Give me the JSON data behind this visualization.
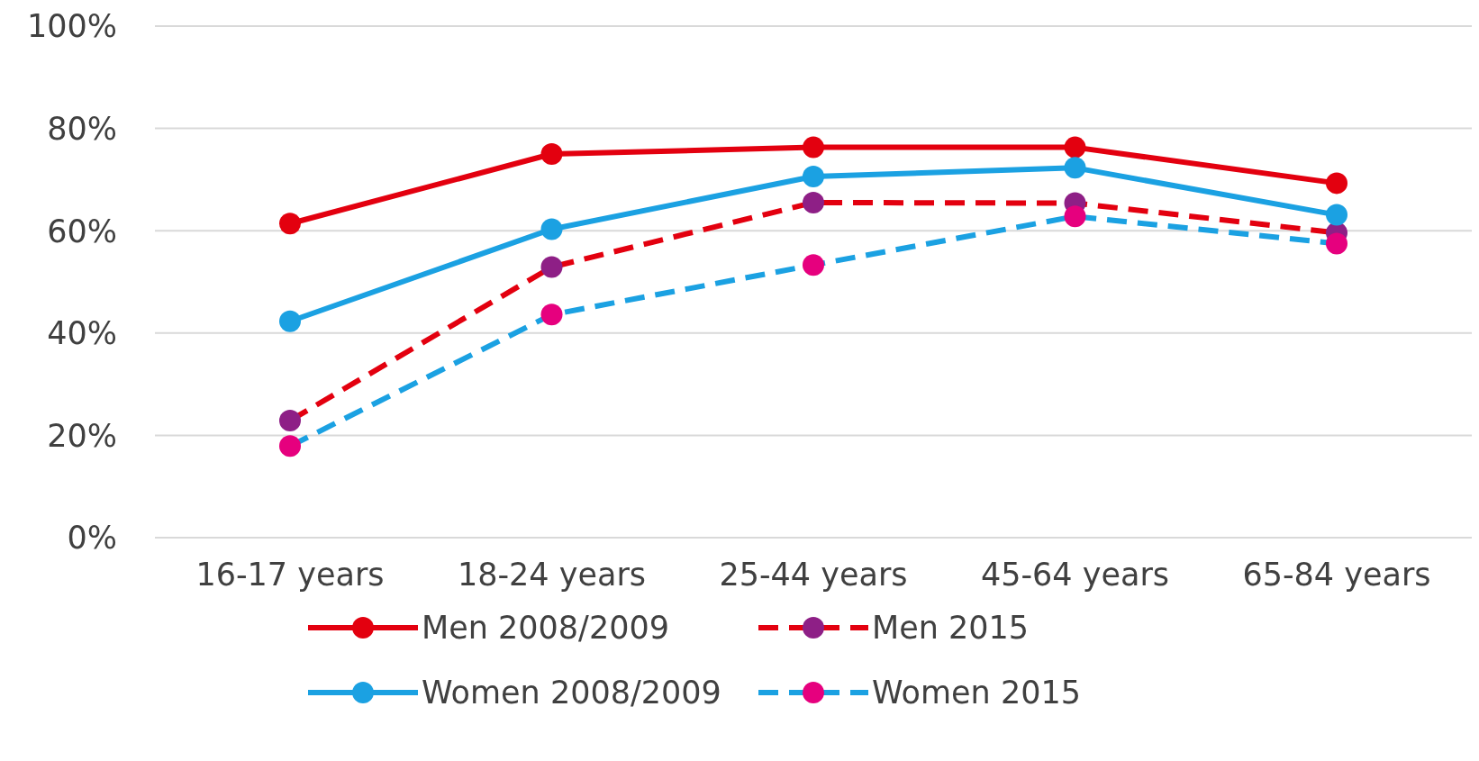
{
  "chart_data": {
    "type": "line",
    "categories": [
      "16-17 years",
      "18-24 years",
      "25-44 years",
      "45-64 years",
      "65-84 years"
    ],
    "series": [
      {
        "name": "Men 2008/2009",
        "color": "#e3000f",
        "line_style": "solid",
        "values": [
          61.4,
          75,
          76.3,
          76.3,
          69.3
        ]
      },
      {
        "name": "Men 2015",
        "color": "#e3000f",
        "colors": [
          "#8e1f86",
          "#8e1f86",
          "#8e1f86",
          "#8e1f86",
          "#8e1f86"
        ],
        "line_style": "dashed",
        "values": [
          22.9,
          52.9,
          65.5,
          65.4,
          59.6
        ]
      },
      {
        "name": "Women 2008/2009",
        "color": "#1ba1e2",
        "line_style": "solid",
        "values": [
          42.3,
          60.3,
          70.6,
          72.3,
          63.1
        ]
      },
      {
        "name": "Women 2015",
        "color": "#1ba1e2",
        "colors": [
          "#e6007e",
          "#e6007e",
          "#e6007e",
          "#e6007e",
          "#e6007e"
        ],
        "line_style": "dashed",
        "values": [
          17.9,
          43.6,
          53.3,
          62.8,
          57.5
        ]
      }
    ],
    "ylim": [
      0,
      100
    ],
    "yticks": [
      {
        "value": 0,
        "label": "0%"
      },
      {
        "value": 20,
        "label": "20%"
      },
      {
        "value": 40,
        "label": "40%"
      },
      {
        "value": 60,
        "label": "60%"
      },
      {
        "value": 80,
        "label": "80%"
      },
      {
        "value": 100,
        "label": "100%"
      }
    ],
    "grid": "y",
    "legend": "bottom",
    "marker": "circle"
  }
}
